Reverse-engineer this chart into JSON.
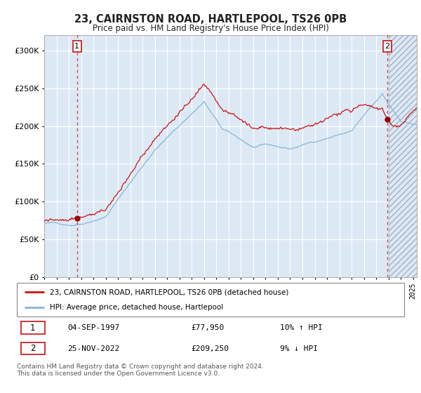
{
  "title": "23, CAIRNSTON ROAD, HARTLEPOOL, TS26 0PB",
  "subtitle": "Price paid vs. HM Land Registry's House Price Index (HPI)",
  "sale1_date": "04-SEP-1997",
  "sale1_price": 77950,
  "sale1_label": "10% ↑ HPI",
  "sale2_date": "25-NOV-2022",
  "sale2_price": 209250,
  "sale2_label": "9% ↓ HPI",
  "legend1": "23, CAIRNSTON ROAD, HARTLEPOOL, TS26 0PB (detached house)",
  "legend2": "HPI: Average price, detached house, Hartlepool",
  "footnote": "Contains HM Land Registry data © Crown copyright and database right 2024.\nThis data is licensed under the Open Government Licence v3.0.",
  "xmin": 1995.0,
  "xmax": 2025.3,
  "ymin": 0,
  "ymax": 320000,
  "red_line_color": "#cc1111",
  "blue_line_color": "#88b4d8",
  "bg_color": "#dce9f5",
  "grid_color": "#ffffff",
  "vline_color": "#dd4444",
  "marker_color": "#990000",
  "sale1_x": 1997.67,
  "sale2_x": 2022.9
}
